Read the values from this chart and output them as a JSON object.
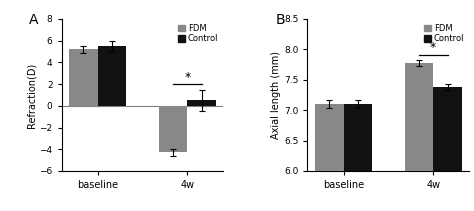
{
  "panel_A": {
    "title": "A",
    "ylabel": "Refraction(D)",
    "ylim": [
      -6,
      8
    ],
    "yticks": [
      -6,
      -4,
      -2,
      0,
      2,
      4,
      6,
      8
    ],
    "xtick_labels": [
      "baseline",
      "4w"
    ],
    "fdm_values": [
      5.2,
      -4.3
    ],
    "ctrl_values": [
      5.5,
      0.5
    ],
    "fdm_errors": [
      0.35,
      0.35
    ],
    "ctrl_errors": [
      0.45,
      1.0
    ],
    "fdm_color": "#888888",
    "ctrl_color": "#111111",
    "sig_text": "*"
  },
  "panel_B": {
    "title": "B",
    "ylabel": "Axial length (mm)",
    "ylim": [
      6.0,
      8.5
    ],
    "yticks": [
      6.0,
      6.5,
      7.0,
      7.5,
      8.0,
      8.5
    ],
    "xtick_labels": [
      "baseline",
      "4w"
    ],
    "fdm_values": [
      7.1,
      7.78
    ],
    "ctrl_values": [
      7.1,
      7.38
    ],
    "fdm_errors": [
      0.07,
      0.05
    ],
    "ctrl_errors": [
      0.07,
      0.05
    ],
    "fdm_color": "#888888",
    "ctrl_color": "#111111",
    "sig_text": "*"
  },
  "legend_labels": [
    "FDM",
    "Control"
  ],
  "bar_width": 0.32
}
